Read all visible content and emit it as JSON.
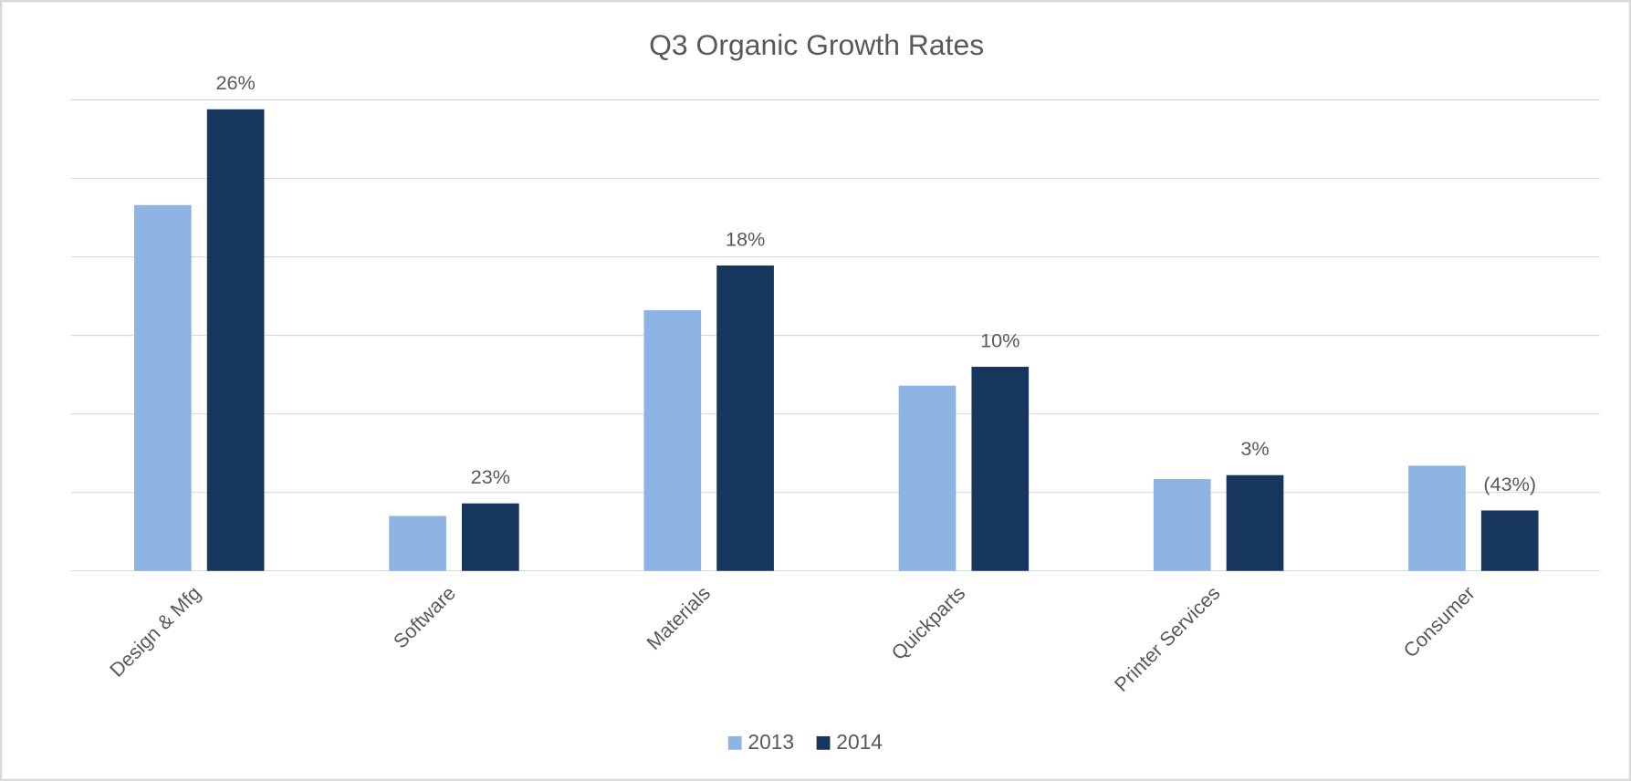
{
  "chart_data": {
    "type": "bar",
    "title": "Q3 Organic Growth Rates",
    "categories": [
      "Design & Mfg",
      "Software",
      "Materials",
      "Quickparts",
      "Printer Services",
      "Consumer"
    ],
    "series": [
      {
        "name": "2013",
        "color": "#8eb4e3",
        "values": [
          4.66,
          0.7,
          3.32,
          2.36,
          1.17,
          1.34
        ]
      },
      {
        "name": "2014",
        "color": "#17365d",
        "values": [
          5.88,
          0.86,
          3.89,
          2.6,
          1.22,
          0.77
        ]
      }
    ],
    "annotations": [
      "26%",
      "23%",
      "18%",
      "10%",
      "3%",
      "(43%)"
    ],
    "ylim": [
      0,
      6
    ],
    "yticks": [
      0,
      1,
      2,
      3,
      4,
      5,
      6
    ],
    "grid": true,
    "legend": "bottom"
  }
}
